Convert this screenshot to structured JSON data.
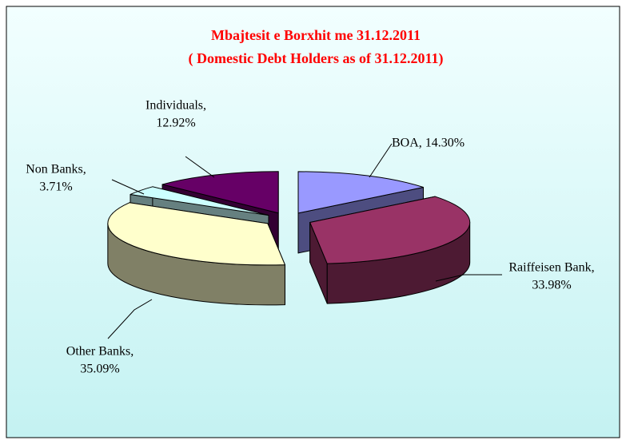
{
  "chart_data": {
    "type": "pie3d",
    "title": "Mbajtesit e Borxhit me 31.12.2011",
    "subtitle": "( Domestic Debt Holders as of 31.12.2011)",
    "values": [
      14.3,
      33.98,
      35.09,
      3.71,
      12.92
    ],
    "value_labels": [
      [
        "BOA, 14.30%"
      ],
      [
        "Raiffeisen Bank,",
        "33.98%"
      ],
      [
        "Other Banks,",
        "35.09%"
      ],
      [
        "Non Banks,",
        "3.71%"
      ],
      [
        "Individuals,",
        "12.92%"
      ]
    ],
    "colors": [
      "#9999ff",
      "#993366",
      "#ffffcc",
      "#ccffff",
      "#660066"
    ]
  }
}
